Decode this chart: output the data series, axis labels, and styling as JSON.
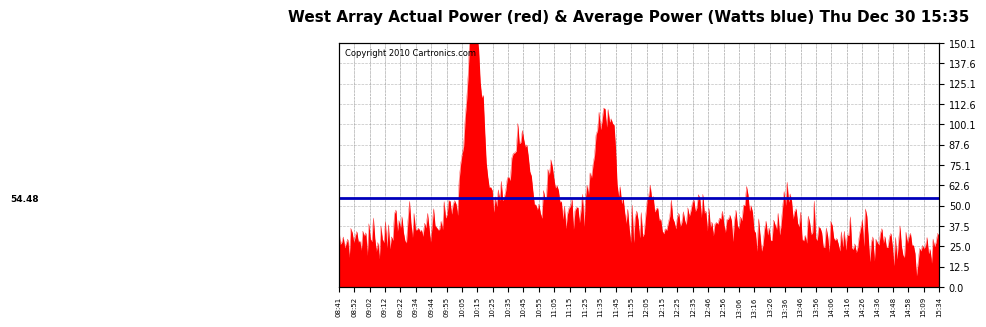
{
  "title": "West Array Actual Power (red) & Average Power (Watts blue) Thu Dec 30 15:35",
  "copyright_text": "Copyright 2010 Cartronics.com",
  "average_power": 54.48,
  "ylim": [
    0.0,
    150.1
  ],
  "yticks": [
    0.0,
    12.5,
    25.0,
    37.5,
    50.0,
    62.6,
    75.1,
    87.6,
    100.1,
    112.6,
    125.1,
    137.6,
    150.1
  ],
  "bar_color": "#ff0000",
  "avg_line_color": "#0000bb",
  "background_color": "#ffffff",
  "plot_bg_color": "#ffffff",
  "grid_color": "#999999",
  "title_fontsize": 11,
  "x_labels": [
    "08:41",
    "08:52",
    "09:02",
    "09:12",
    "09:22",
    "09:34",
    "09:44",
    "09:55",
    "10:05",
    "10:15",
    "10:25",
    "10:35",
    "10:45",
    "10:55",
    "11:05",
    "11:15",
    "11:25",
    "11:35",
    "11:45",
    "11:55",
    "12:05",
    "12:15",
    "12:25",
    "12:35",
    "12:46",
    "12:56",
    "13:06",
    "13:16",
    "13:26",
    "13:36",
    "13:46",
    "13:56",
    "14:06",
    "14:16",
    "14:26",
    "14:36",
    "14:48",
    "14:58",
    "15:09",
    "15:34"
  ]
}
